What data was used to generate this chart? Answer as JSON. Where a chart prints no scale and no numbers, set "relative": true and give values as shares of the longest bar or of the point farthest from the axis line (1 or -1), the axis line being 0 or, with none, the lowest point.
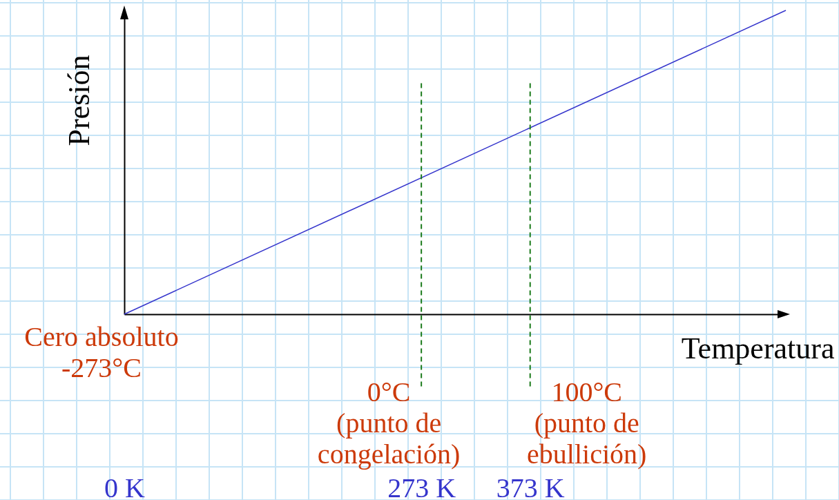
{
  "chart_data": {
    "type": "line",
    "xlabel": "Temperatura",
    "ylabel": "Presión",
    "relative": true,
    "x": [
      0,
      608
    ],
    "xlim": [
      0,
      608
    ],
    "xticks": [
      {
        "value": 0,
        "label": "0 K"
      },
      {
        "value": 273,
        "label": "273 K"
      },
      {
        "value": 373,
        "label": "373 K"
      }
    ],
    "series": [
      {
        "color": "#3535cc",
        "values": [
          0,
          1
        ]
      }
    ],
    "ref_lines": [
      {
        "axis": "x",
        "value": 273,
        "label": "0°C\n(punto de\ncongelación)",
        "color": "#1a7a1a",
        "line_style": "dashed"
      },
      {
        "axis": "x",
        "value": 373,
        "label": "100°C\n(punto de\nebullición)",
        "color": "#1a7a1a",
        "line_style": "dashed"
      }
    ],
    "annotations": [
      {
        "text": "Cero absoluto\n-273°C",
        "x": 0,
        "y": 0
      }
    ]
  }
}
